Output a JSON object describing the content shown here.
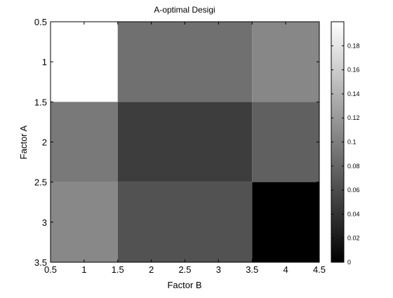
{
  "chart_data": {
    "type": "heatmap",
    "title": "A-optimal Desigi",
    "xlabel": "Factor B",
    "ylabel": "Factor A",
    "x_ticks": [
      "0.5",
      "1",
      "1.5",
      "2",
      "2.5",
      "3",
      "3.5",
      "4",
      "4.5"
    ],
    "y_ticks": [
      "0.5",
      "1",
      "1.5",
      "2",
      "2.5",
      "3",
      "3.5"
    ],
    "xlim": [
      0.5,
      4.5
    ],
    "ylim": [
      0.5,
      3.5
    ],
    "y_reversed": true,
    "rows": [
      {
        "factor_a": 1,
        "cells": [
          {
            "x_from": 0.5,
            "x_to": 1.5,
            "value": 0.2
          },
          {
            "x_from": 1.5,
            "x_to": 3.5,
            "value": 0.088
          },
          {
            "x_from": 3.5,
            "x_to": 4.5,
            "value": 0.106
          }
        ]
      },
      {
        "factor_a": 2,
        "cells": [
          {
            "x_from": 0.5,
            "x_to": 1.5,
            "value": 0.095
          },
          {
            "x_from": 1.5,
            "x_to": 3.5,
            "value": 0.048
          },
          {
            "x_from": 3.5,
            "x_to": 4.5,
            "value": 0.075
          }
        ]
      },
      {
        "factor_a": 3,
        "cells": [
          {
            "x_from": 0.5,
            "x_to": 1.5,
            "value": 0.107
          },
          {
            "x_from": 1.5,
            "x_to": 3.5,
            "value": 0.064
          },
          {
            "x_from": 3.5,
            "x_to": 4.5,
            "value": 0.0
          }
        ]
      }
    ],
    "colormap": "gray",
    "colorbar": {
      "range": [
        0,
        0.2
      ],
      "ticks": [
        "0",
        "0.02",
        "0.04",
        "0.06",
        "0.08",
        "0.1",
        "0.12",
        "0.14",
        "0.16",
        "0.18"
      ]
    },
    "grid": false
  }
}
